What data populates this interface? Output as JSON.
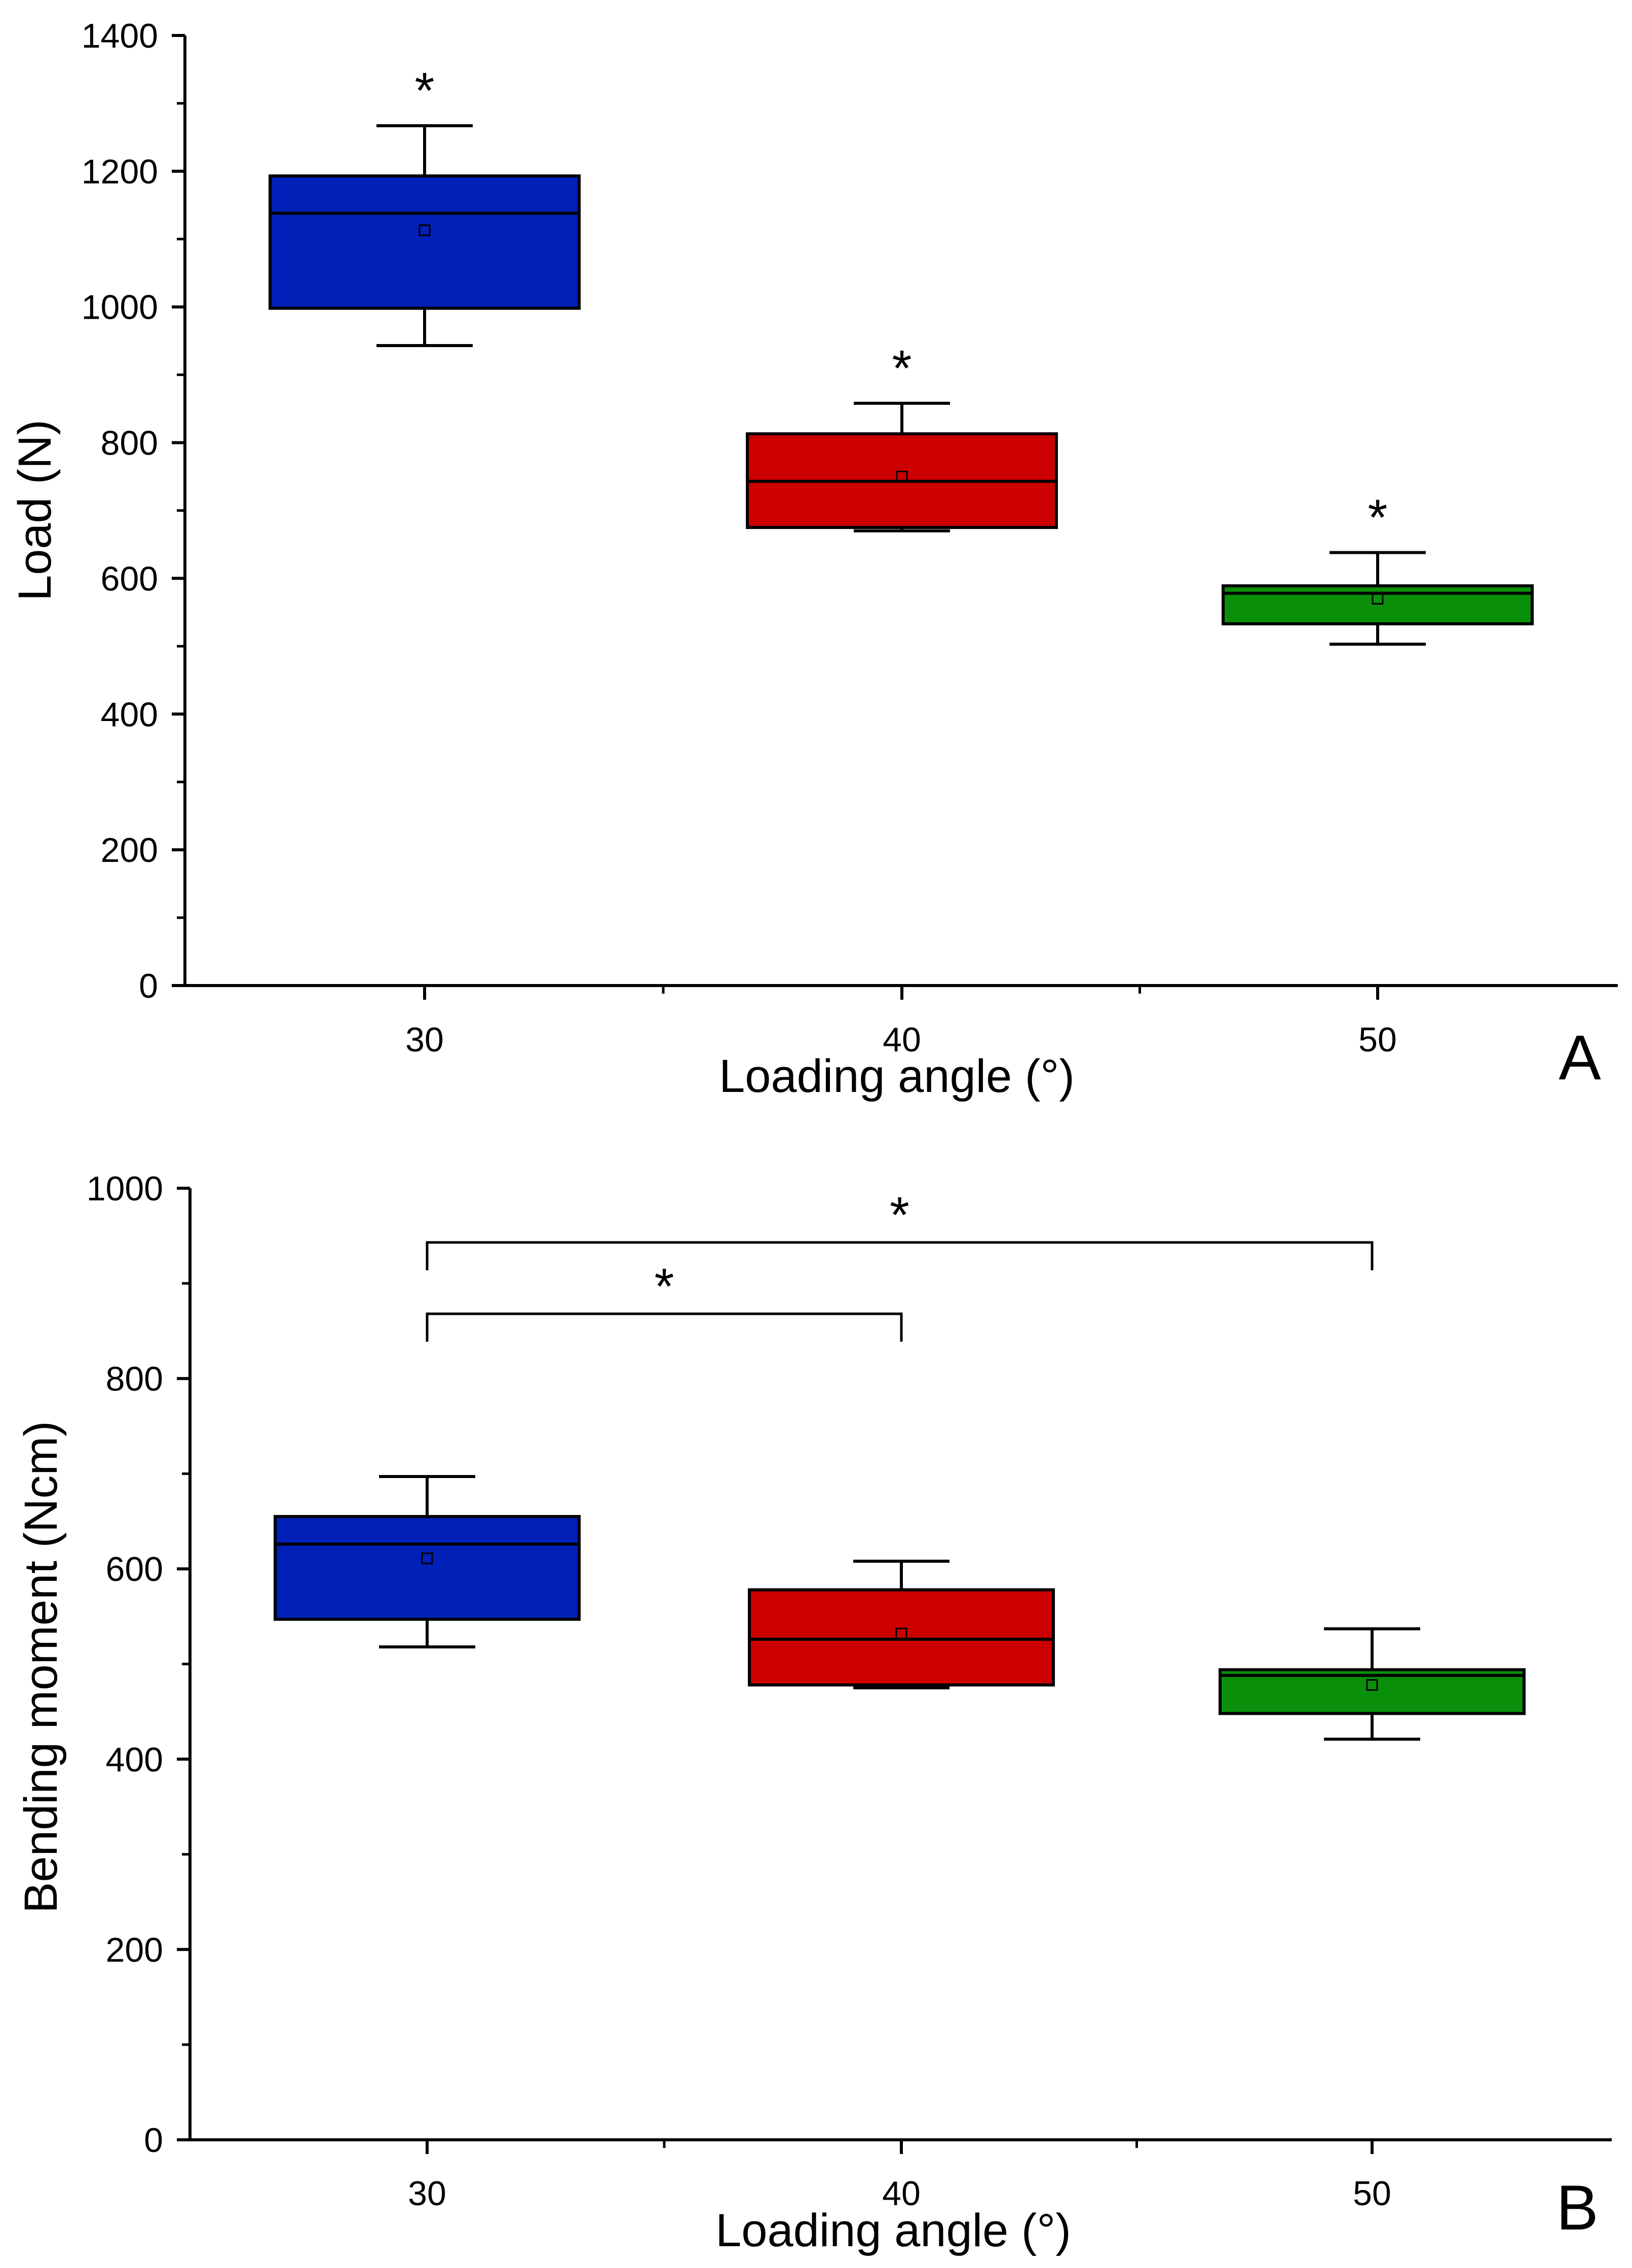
{
  "chart_data": [
    {
      "type": "box",
      "panel_label": "A",
      "xlabel": "Loading angle (°)",
      "ylabel": "Load (N)",
      "ylim": [
        0,
        1400
      ],
      "y_ticks": [
        0,
        200,
        400,
        600,
        800,
        1000,
        1200,
        1400
      ],
      "x_ticks": [
        30,
        40,
        50
      ],
      "categories": [
        "30",
        "40",
        "50"
      ],
      "boxes": [
        {
          "category": "30",
          "whisker_low": 943,
          "q1": 998,
          "median": 1138,
          "q3": 1193,
          "whisker_high": 1267,
          "mean": 1113,
          "color": "#0020b8"
        },
        {
          "category": "40",
          "whisker_low": 670,
          "q1": 675,
          "median": 743,
          "q3": 813,
          "whisker_high": 858,
          "mean": 750,
          "color": "#cc0000"
        },
        {
          "category": "50",
          "whisker_low": 503,
          "q1": 533,
          "median": 578,
          "q3": 589,
          "whisker_high": 638,
          "mean": 570,
          "color": "#0a8f0a"
        }
      ],
      "annotations": [
        {
          "type": "star",
          "text": "*",
          "category": "30"
        },
        {
          "type": "star",
          "text": "*",
          "category": "40"
        },
        {
          "type": "star",
          "text": "*",
          "category": "50"
        }
      ]
    },
    {
      "type": "box",
      "panel_label": "B",
      "xlabel": "Loading angle (°)",
      "ylabel": "Bending moment (Ncm)",
      "ylim": [
        0,
        1000
      ],
      "y_ticks": [
        0,
        200,
        400,
        600,
        800,
        1000
      ],
      "x_ticks": [
        30,
        40,
        50
      ],
      "categories": [
        "30",
        "40",
        "50"
      ],
      "boxes": [
        {
          "category": "30",
          "whisker_low": 518,
          "q1": 547,
          "median": 626,
          "q3": 655,
          "whisker_high": 697,
          "mean": 611,
          "color": "#0020b8"
        },
        {
          "category": "40",
          "whisker_low": 475,
          "q1": 478,
          "median": 526,
          "q3": 578,
          "whisker_high": 608,
          "mean": 532,
          "color": "#cc0000"
        },
        {
          "category": "50",
          "whisker_low": 421,
          "q1": 448,
          "median": 488,
          "q3": 494,
          "whisker_high": 537,
          "mean": 478,
          "color": "#0a8f0a"
        }
      ],
      "annotations": [
        {
          "type": "bracket",
          "text": "*",
          "from": "30",
          "to": "40",
          "level": 868
        },
        {
          "type": "bracket",
          "text": "*",
          "from": "30",
          "to": "50",
          "level": 943
        }
      ]
    }
  ],
  "style": {
    "axis_color": "#000000",
    "background": "#ffffff"
  }
}
